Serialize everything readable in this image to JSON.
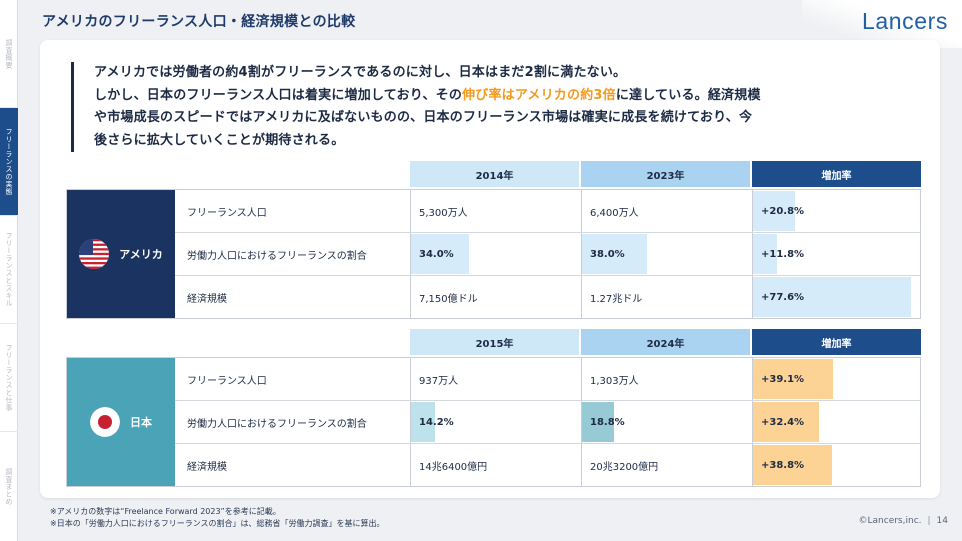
{
  "sidebar": {
    "tabs": [
      {
        "label": "調査概要"
      },
      {
        "label": "フリーランスの実態"
      },
      {
        "label": "フリーランスとスキル"
      },
      {
        "label": "フリーランスと仕事"
      },
      {
        "label": "調査まとめ"
      }
    ]
  },
  "header": {
    "title": "アメリカのフリーランス人口・経済規模との比較",
    "logo": "Lancers"
  },
  "lead": {
    "line1": "アメリカでは労働者の約4割がフリーランスであるのに対し、日本はまだ2割に満たない。",
    "line2_pre": "しかし、日本のフリーランス人口は着実に増加しており、その",
    "line2_hl": "伸び率はアメリカの約3倍",
    "line2_post": "に達している。経済規模",
    "line3": "や市場成長のスピードではアメリカに及ばないものの、日本のフリーランス市場は確実に成長を続けており、今",
    "line4": "後さらに拡大していくことが期待される。"
  },
  "colors": {
    "us_block": "#1b3360",
    "jp_block": "#4aa3b6",
    "accent_orange": "#f39a1e",
    "header_dark": "#1e4d8c"
  },
  "usa": {
    "country": "アメリカ",
    "headers": [
      "2014年",
      "2023年",
      "増加率"
    ],
    "rows": [
      {
        "label": "フリーランス人口",
        "v1": "5,300万人",
        "v2": "6,400万人",
        "growth": "+20.8%",
        "share1": null,
        "share2": null,
        "growth_pct": 20.8
      },
      {
        "label": "労働力人口におけるフリーランスの割合",
        "v1": "34.0%",
        "v2": "38.0%",
        "growth": "+11.8%",
        "share1": 34.0,
        "share2": 38.0,
        "growth_pct": 11.8
      },
      {
        "label": "経済規模",
        "v1": "7,150億ドル",
        "v2": "1.27兆ドル",
        "growth": "+77.6%",
        "share1": null,
        "share2": null,
        "growth_pct": 77.6
      }
    ]
  },
  "japan": {
    "country": "日本",
    "headers": [
      "2015年",
      "2024年",
      "増加率"
    ],
    "rows": [
      {
        "label": "フリーランス人口",
        "v1": "937万人",
        "v2": "1,303万人",
        "growth": "+39.1%",
        "share1": null,
        "share2": null,
        "growth_pct": 39.1
      },
      {
        "label": "労働力人口におけるフリーランスの割合",
        "v1": "14.2%",
        "v2": "18.8%",
        "growth": "+32.4%",
        "share1": 14.2,
        "share2": 18.8,
        "growth_pct": 32.4
      },
      {
        "label": "経済規模",
        "v1": "14兆6400億円",
        "v2": "20兆3200億円",
        "growth": "+38.8%",
        "share1": null,
        "share2": null,
        "growth_pct": 38.8
      }
    ]
  },
  "footnotes": {
    "note1": "※アメリカの数字は“Freelance Forward 2023”を参考に記載。",
    "note2": "※日本の「労働力人口におけるフリーランスの割合」は、総務省「労働力調査」を基に算出。"
  },
  "footer": {
    "copyright": "©Lancers,inc.",
    "page_number": "14"
  }
}
